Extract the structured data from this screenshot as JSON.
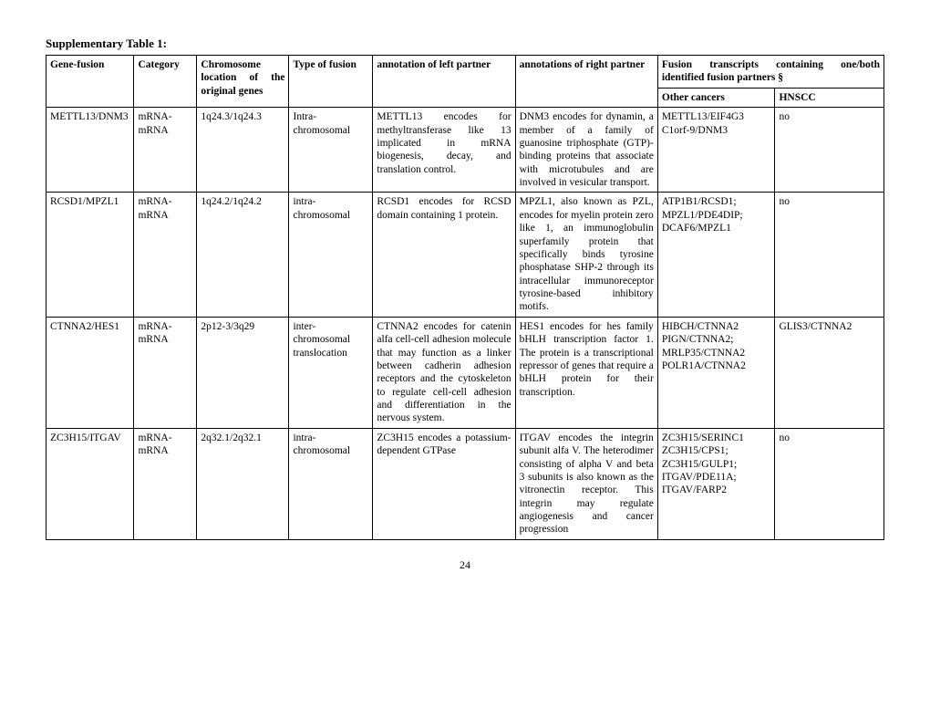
{
  "title": "Supplementary Table 1:",
  "page_number": "24",
  "headers": {
    "gene_fusion": "Gene-fusion",
    "category": "Category",
    "chromosome": "Chromosome location of the original genes",
    "fusion_type": "Type of fusion",
    "left_partner": "annotation of left partner",
    "right_partner": "annotations of right partner",
    "fusion_transcripts": "Fusion transcripts containing one/both identified fusion partners §",
    "other_cancers": "Other cancers",
    "hnscc": "HNSCC"
  },
  "rows": [
    {
      "gene_fusion": "METTL13/DNM3",
      "category": "mRNA-mRNA",
      "chromosome": "1q24.3/1q24.3",
      "fusion_type": "Intra-chromosomal",
      "left": "METTL13 encodes for methyltransferase like 13 implicated in mRNA biogenesis, decay, and translation control.",
      "right": "DNM3 encodes for dynamin, a member of a family of guanosine triphosphate (GTP)-binding proteins that associate with microtubules and are involved in vesicular transport.",
      "other_cancers": "METTL13/EIF4G3 C1orf-9/DNM3",
      "hnscc": "no"
    },
    {
      "gene_fusion": "RCSD1/MPZL1",
      "category": "mRNA-mRNA",
      "chromosome": "1q24.2/1q24.2",
      "fusion_type": "intra-chromosomal",
      "left": "RCSD1 encodes for RCSD domain containing 1 protein.",
      "right": "MPZL1, also known as PZL, encodes for myelin protein zero like 1, an immunoglobulin superfamily protein that specifically binds tyrosine phosphatase SHP-2 through its intracellular immunoreceptor tyrosine-based inhibitory motifs.",
      "other_cancers": "ATP1B1/RCSD1; MPZL1/PDE4DIP; DCAF6/MPZL1",
      "hnscc": "no"
    },
    {
      "gene_fusion": "CTNNA2/HES1",
      "category": "mRNA-mRNA",
      "chromosome": "2p12-3/3q29",
      "fusion_type": "inter-chromosomal translocation",
      "left": "CTNNA2 encodes for catenin alfa cell-cell adhesion molecule that may function as a linker between cadherin adhesion receptors and the cytoskeleton to regulate cell-cell adhesion and differentiation in the nervous system.",
      "right": "HES1 encodes for hes family bHLH transcription factor 1. The protein is a transcriptional repressor of genes that require a bHLH protein for their transcription.",
      "other_cancers": "HIBCH/CTNNA2 PIGN/CTNNA2; MRLP35/CTNNA2 POLR1A/CTNNA2",
      "hnscc": "GLIS3/CTNNA2"
    },
    {
      "gene_fusion": "ZC3H15/ITGAV",
      "category": "mRNA-mRNA",
      "chromosome": "2q32.1/2q32.1",
      "fusion_type": "intra-chromosomal",
      "left": "ZC3H15 encodes a potassium-dependent GTPase",
      "right": "ITGAV encodes the integrin subunit alfa V. The heterodimer consisting of alpha V and beta 3 subunits is also known as the vitronectin receptor. This integrin may regulate angiogenesis and cancer progression",
      "other_cancers": "ZC3H15/SERINC1 ZC3H15/CPS1; ZC3H15/GULP1; ITGAV/PDE11A; ITGAV/FARP2",
      "hnscc": "no"
    }
  ]
}
